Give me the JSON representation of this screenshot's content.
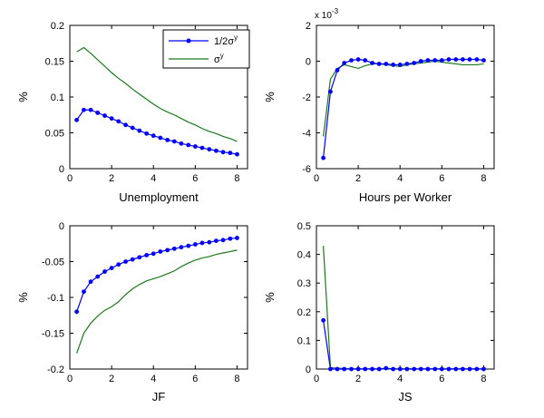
{
  "legend": {
    "series_blue": "1/2σ",
    "series_blue_sup": "y",
    "series_green": "σ",
    "series_green_sup": "y"
  },
  "colors": {
    "blue": "#0000ff",
    "green": "#1a7a1a",
    "axis": "#000000"
  },
  "chart_data": [
    {
      "type": "line",
      "xlabel": "Unemployment",
      "ylabel": "%",
      "xlim": [
        0,
        8.5
      ],
      "ylim": [
        0,
        0.2
      ],
      "xticks": [
        0,
        2,
        4,
        6,
        8
      ],
      "xtick_labels": [
        "0",
        "2",
        "4",
        "6",
        "8"
      ],
      "yticks": [
        0,
        0.05,
        0.1,
        0.15,
        0.2
      ],
      "ytick_labels": [
        "0",
        "0.05",
        "0.1",
        "0.15",
        "0.2"
      ],
      "legend": "top-right",
      "x": [
        0.33,
        0.67,
        1,
        1.33,
        1.67,
        2,
        2.33,
        2.67,
        3,
        3.33,
        3.67,
        4,
        4.33,
        4.67,
        5,
        5.33,
        5.67,
        6,
        6.33,
        6.67,
        7,
        7.33,
        7.67,
        8
      ],
      "series": [
        {
          "name": "1/2σ^y",
          "color": "blue",
          "markers": true,
          "values": [
            0.068,
            0.082,
            0.082,
            0.078,
            0.074,
            0.07,
            0.066,
            0.061,
            0.057,
            0.053,
            0.049,
            0.046,
            0.043,
            0.04,
            0.038,
            0.035,
            0.033,
            0.031,
            0.029,
            0.027,
            0.025,
            0.023,
            0.022,
            0.02
          ]
        },
        {
          "name": "σ^y",
          "color": "green",
          "markers": false,
          "values": [
            0.163,
            0.169,
            0.161,
            0.152,
            0.143,
            0.134,
            0.126,
            0.119,
            0.111,
            0.104,
            0.097,
            0.09,
            0.084,
            0.079,
            0.075,
            0.07,
            0.065,
            0.061,
            0.056,
            0.052,
            0.049,
            0.045,
            0.042,
            0.038
          ]
        }
      ]
    },
    {
      "type": "line",
      "xlabel": "Hours per Worker",
      "ylabel": "%",
      "exponent_label": "x 10",
      "exponent_power": "-3",
      "xlim": [
        0,
        8.5
      ],
      "ylim": [
        -6,
        2
      ],
      "xticks": [
        0,
        2,
        4,
        6,
        8
      ],
      "xtick_labels": [
        "0",
        "2",
        "4",
        "6",
        "8"
      ],
      "yticks": [
        -6,
        -4,
        -2,
        0,
        2
      ],
      "ytick_labels": [
        "-6",
        "-4",
        "-2",
        "0",
        "2"
      ],
      "x": [
        0.33,
        0.67,
        1,
        1.33,
        1.67,
        2,
        2.33,
        2.67,
        3,
        3.33,
        3.67,
        4,
        4.33,
        4.67,
        5,
        5.33,
        5.67,
        6,
        6.33,
        6.67,
        7,
        7.33,
        7.67,
        8
      ],
      "series": [
        {
          "name": "1/2σ^y",
          "color": "blue",
          "markers": true,
          "values": [
            -5.4,
            -1.7,
            -0.5,
            -0.1,
            0.05,
            0.1,
            0.05,
            -0.1,
            -0.15,
            -0.15,
            -0.2,
            -0.2,
            -0.15,
            -0.1,
            0,
            0.05,
            0.05,
            0.05,
            0.1,
            0.1,
            0.1,
            0.1,
            0.1,
            0.05
          ]
        },
        {
          "name": "σ^y",
          "color": "green",
          "markers": false,
          "values": [
            -4.2,
            -1.0,
            -0.4,
            -0.2,
            -0.3,
            -0.4,
            -0.25,
            -0.15,
            -0.15,
            -0.2,
            -0.25,
            -0.3,
            -0.2,
            -0.15,
            -0.1,
            -0.05,
            0,
            -0.05,
            -0.1,
            -0.15,
            -0.2,
            -0.2,
            -0.2,
            -0.15
          ]
        }
      ]
    },
    {
      "type": "line",
      "xlabel": "JF",
      "ylabel": "%",
      "xlim": [
        0,
        8.5
      ],
      "ylim": [
        -0.2,
        0
      ],
      "xticks": [
        0,
        2,
        4,
        6,
        8
      ],
      "xtick_labels": [
        "0",
        "2",
        "4",
        "6",
        "8"
      ],
      "yticks": [
        -0.2,
        -0.15,
        -0.1,
        -0.05,
        0
      ],
      "ytick_labels": [
        "-0.2",
        "-0.15",
        "-0.1",
        "-0.05",
        "0"
      ],
      "x": [
        0.33,
        0.67,
        1,
        1.33,
        1.67,
        2,
        2.33,
        2.67,
        3,
        3.33,
        3.67,
        4,
        4.33,
        4.67,
        5,
        5.33,
        5.67,
        6,
        6.33,
        6.67,
        7,
        7.33,
        7.67,
        8
      ],
      "series": [
        {
          "name": "1/2σ^y",
          "color": "blue",
          "markers": true,
          "values": [
            -0.12,
            -0.092,
            -0.078,
            -0.071,
            -0.064,
            -0.059,
            -0.054,
            -0.05,
            -0.047,
            -0.044,
            -0.041,
            -0.039,
            -0.036,
            -0.034,
            -0.032,
            -0.03,
            -0.028,
            -0.026,
            -0.024,
            -0.023,
            -0.021,
            -0.02,
            -0.018,
            -0.017
          ]
        },
        {
          "name": "σ^y",
          "color": "green",
          "markers": false,
          "values": [
            -0.178,
            -0.15,
            -0.136,
            -0.126,
            -0.118,
            -0.113,
            -0.106,
            -0.096,
            -0.088,
            -0.082,
            -0.077,
            -0.074,
            -0.071,
            -0.067,
            -0.063,
            -0.057,
            -0.052,
            -0.048,
            -0.045,
            -0.043,
            -0.04,
            -0.038,
            -0.036,
            -0.034
          ]
        }
      ]
    },
    {
      "type": "line",
      "xlabel": "JS",
      "ylabel": "%",
      "xlim": [
        0,
        8.5
      ],
      "ylim": [
        0,
        0.5
      ],
      "xticks": [
        0,
        2,
        4,
        6,
        8
      ],
      "xtick_labels": [
        "0",
        "2",
        "4",
        "6",
        "8"
      ],
      "yticks": [
        0,
        0.1,
        0.2,
        0.3,
        0.4,
        0.5
      ],
      "ytick_labels": [
        "0",
        "0.1",
        "0.2",
        "0.3",
        "0.4",
        "0.5"
      ],
      "x": [
        0.33,
        0.67,
        1,
        1.33,
        1.67,
        2,
        2.33,
        2.67,
        3,
        3.33,
        3.67,
        4,
        4.33,
        4.67,
        5,
        5.33,
        5.67,
        6,
        6.33,
        6.67,
        7,
        7.33,
        7.67,
        8
      ],
      "series": [
        {
          "name": "1/2σ^y",
          "color": "blue",
          "markers": true,
          "values": [
            0.17,
            0,
            0,
            0,
            0,
            0,
            0,
            0,
            0,
            0.003,
            0,
            0,
            0,
            0,
            0,
            0,
            0,
            0,
            0,
            0,
            0,
            0,
            0,
            0
          ]
        },
        {
          "name": "σ^y",
          "color": "green",
          "markers": false,
          "values": [
            0.43,
            0.005,
            0.003,
            0.002,
            0.001,
            0.001,
            0.001,
            0.001,
            0.001,
            0.002,
            0.001,
            0.001,
            0.001,
            0.001,
            0.001,
            0.001,
            0.001,
            0.001,
            0.001,
            0.001,
            0.001,
            0.001,
            0.001,
            0.001
          ]
        }
      ]
    }
  ]
}
